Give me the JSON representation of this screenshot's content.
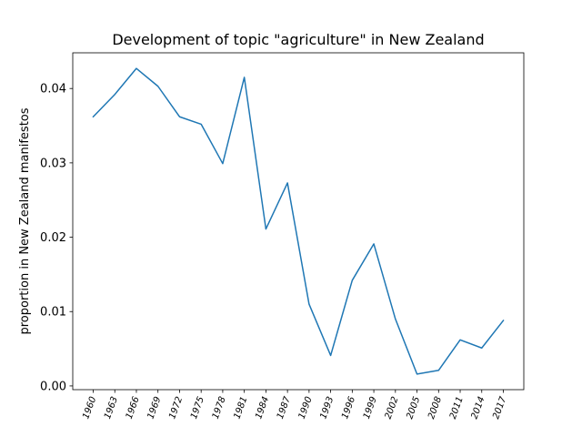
{
  "chart_data": {
    "type": "line",
    "title": "Development of topic \"agriculture\" in New Zealand",
    "xlabel": "",
    "ylabel": "proportion in New Zealand manifestos",
    "x": [
      "1960",
      "1963",
      "1966",
      "1969",
      "1972",
      "1975",
      "1978",
      "1981",
      "1984",
      "1987",
      "1990",
      "1993",
      "1996",
      "1999",
      "2002",
      "2005",
      "2008",
      "2011",
      "2014",
      "2017"
    ],
    "series": [
      {
        "values": [
          0.0362,
          0.0392,
          0.0427,
          0.0403,
          0.0362,
          0.0352,
          0.0299,
          0.0415,
          0.0211,
          0.0273,
          0.011,
          0.0041,
          0.0142,
          0.0191,
          0.009,
          0.0016,
          0.0021,
          0.0062,
          0.0051,
          0.0088
        ],
        "color": "#1f77b4"
      }
    ],
    "ylim": [
      -0.0005,
      0.0448
    ],
    "yticks": [
      0.0,
      0.01,
      0.02,
      0.03,
      0.04
    ],
    "ytick_labels": [
      "0.00",
      "0.01",
      "0.02",
      "0.03",
      "0.04"
    ],
    "grid": false,
    "legend": "none"
  }
}
